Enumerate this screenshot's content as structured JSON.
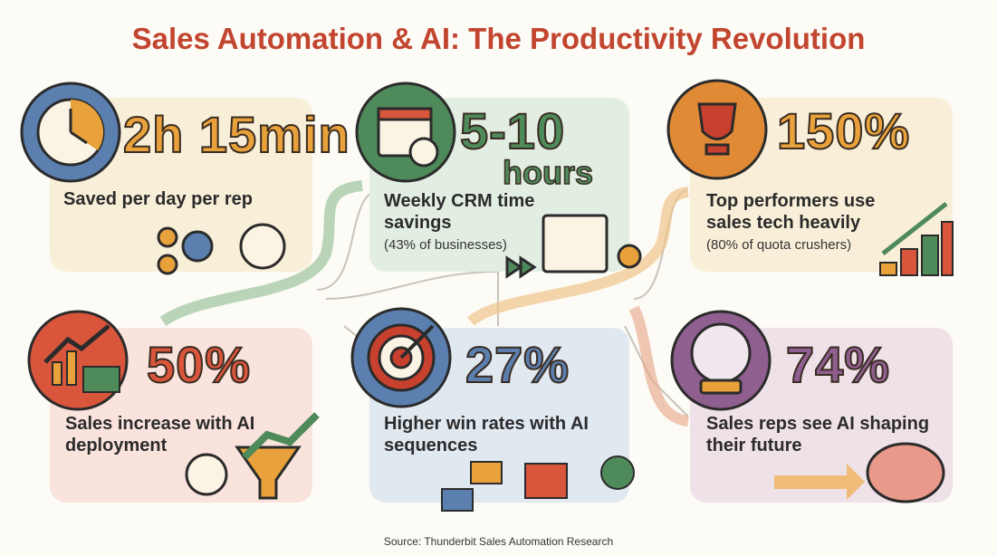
{
  "title": "Sales Automation & AI: The Productivity Revolution",
  "cards": [
    {
      "stat": "2h 15min",
      "description": "Saved per day per rep"
    },
    {
      "stat": "5-10",
      "stat_unit": "hours",
      "description": "Weekly CRM time savings",
      "note": "(43% of businesses)"
    },
    {
      "stat": "150%",
      "description": "Top performers use sales tech heavily",
      "note": "(80% of quota crushers)"
    },
    {
      "stat": "50%",
      "description": "Sales increase with AI deployment"
    },
    {
      "stat": "27%",
      "description": "Higher win rates with AI sequences"
    },
    {
      "stat": "74%",
      "description": "Sales reps see AI shaping their future"
    }
  ],
  "source": "Source: Thunderbit Sales Automation Research"
}
